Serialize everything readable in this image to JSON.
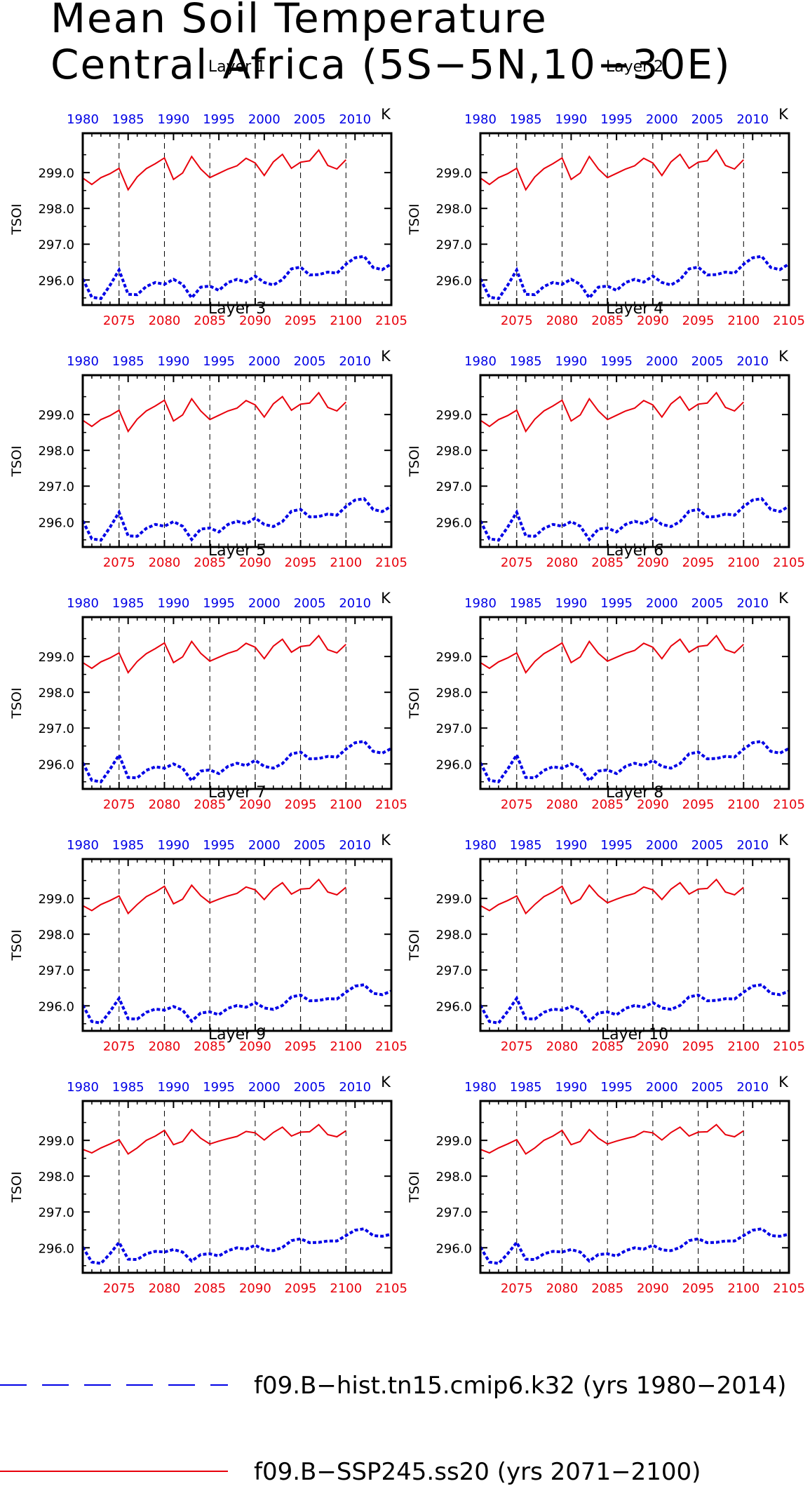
{
  "title": [
    "Mean Soil Temperature",
    "Central Africa (5S−5N,10−30E)"
  ],
  "colors": {
    "ssp": "#e8000b",
    "hist": "#0000e6",
    "axis": "#000000"
  },
  "chart_data": {
    "type": "line",
    "ylabel": "TSOI",
    "units": "K",
    "ylim": [
      295.3,
      300.1
    ],
    "y_ticks": [
      296.0,
      297.0,
      298.0,
      299.0
    ],
    "y_tick_labels": [
      "296.0",
      "297.0",
      "298.0",
      "299.0"
    ],
    "x_bottom": {
      "range": [
        2071,
        2105
      ],
      "ticks": [
        2075,
        2080,
        2085,
        2090,
        2095,
        2100,
        2105
      ]
    },
    "x_top": {
      "range": [
        1980,
        2014
      ],
      "ticks": [
        1980,
        1985,
        1990,
        1995,
        2000,
        2005,
        2010
      ]
    },
    "grid": "dashed vertical lines at bottom-axis ticks 2075–2100",
    "legend_position": "bottom",
    "series": [
      {
        "name": "f09.B−hist.tn15.cmip6.k32 (yrs 1980−2014)",
        "style": "dashed",
        "axis": "top"
      },
      {
        "name": "f09.B−SSP245.ss20 (yrs 2071−2100)",
        "style": "solid",
        "axis": "bottom"
      }
    ],
    "panels": [
      {
        "title": "Layer 1",
        "ssp": [
          298.85,
          298.67,
          298.86,
          298.97,
          299.12,
          298.52,
          298.88,
          299.11,
          299.25,
          299.41,
          298.81,
          298.99,
          299.45,
          299.1,
          298.86,
          298.98,
          299.1,
          299.19,
          299.4,
          299.27,
          298.92,
          299.3,
          299.51,
          299.12,
          299.29,
          299.33,
          299.63,
          299.2,
          299.1,
          299.36
        ],
        "hist": [
          296.03,
          295.52,
          295.48,
          295.85,
          296.28,
          295.6,
          295.59,
          295.82,
          295.93,
          295.88,
          296.02,
          295.88,
          295.5,
          295.8,
          295.83,
          295.71,
          295.93,
          296.02,
          295.94,
          296.11,
          295.93,
          295.86,
          296.01,
          296.31,
          296.36,
          296.14,
          296.15,
          296.22,
          296.19,
          296.44,
          296.62,
          296.66,
          296.35,
          296.29,
          296.45
        ]
      },
      {
        "title": "Layer 2",
        "ssp": [
          298.85,
          298.67,
          298.86,
          298.97,
          299.12,
          298.52,
          298.88,
          299.11,
          299.25,
          299.41,
          298.81,
          298.99,
          299.45,
          299.1,
          298.86,
          298.98,
          299.1,
          299.19,
          299.4,
          299.27,
          298.92,
          299.3,
          299.51,
          299.12,
          299.29,
          299.33,
          299.63,
          299.2,
          299.1,
          299.36
        ],
        "hist": [
          296.03,
          295.52,
          295.48,
          295.85,
          296.28,
          295.6,
          295.59,
          295.82,
          295.93,
          295.88,
          296.02,
          295.88,
          295.5,
          295.8,
          295.83,
          295.71,
          295.93,
          296.02,
          295.94,
          296.11,
          295.93,
          295.86,
          296.01,
          296.31,
          296.36,
          296.14,
          296.15,
          296.22,
          296.19,
          296.44,
          296.62,
          296.66,
          296.35,
          296.29,
          296.45
        ]
      },
      {
        "title": "Layer 3",
        "ssp": [
          298.84,
          298.67,
          298.86,
          298.97,
          299.12,
          298.53,
          298.87,
          299.1,
          299.24,
          299.4,
          298.82,
          298.99,
          299.44,
          299.1,
          298.86,
          298.98,
          299.1,
          299.18,
          299.39,
          299.27,
          298.93,
          299.3,
          299.5,
          299.12,
          299.29,
          299.32,
          299.61,
          299.2,
          299.1,
          299.35
        ],
        "hist": [
          296.03,
          295.53,
          295.49,
          295.85,
          296.27,
          295.61,
          295.6,
          295.82,
          295.93,
          295.88,
          296.01,
          295.88,
          295.51,
          295.8,
          295.83,
          295.72,
          295.93,
          296.02,
          295.95,
          296.11,
          295.93,
          295.87,
          296.01,
          296.3,
          296.35,
          296.14,
          296.15,
          296.22,
          296.19,
          296.43,
          296.61,
          296.65,
          296.35,
          296.29,
          296.44
        ]
      },
      {
        "title": "Layer 4",
        "ssp": [
          298.84,
          298.67,
          298.86,
          298.97,
          299.12,
          298.53,
          298.87,
          299.1,
          299.24,
          299.4,
          298.82,
          298.99,
          299.44,
          299.1,
          298.86,
          298.98,
          299.1,
          299.18,
          299.39,
          299.27,
          298.93,
          299.3,
          299.5,
          299.12,
          299.29,
          299.32,
          299.61,
          299.2,
          299.1,
          299.35
        ],
        "hist": [
          296.03,
          295.53,
          295.49,
          295.85,
          296.27,
          295.61,
          295.6,
          295.82,
          295.93,
          295.88,
          296.01,
          295.88,
          295.51,
          295.8,
          295.83,
          295.72,
          295.93,
          296.02,
          295.95,
          296.11,
          295.93,
          295.87,
          296.01,
          296.3,
          296.35,
          296.14,
          296.15,
          296.22,
          296.19,
          296.43,
          296.61,
          296.65,
          296.35,
          296.29,
          296.44
        ]
      },
      {
        "title": "Layer 5",
        "ssp": [
          298.83,
          298.67,
          298.85,
          298.96,
          299.1,
          298.55,
          298.86,
          299.08,
          299.22,
          299.38,
          298.83,
          298.99,
          299.42,
          299.09,
          298.87,
          298.98,
          299.09,
          299.17,
          299.37,
          299.26,
          298.94,
          299.29,
          299.48,
          299.12,
          299.28,
          299.31,
          299.58,
          299.19,
          299.1,
          299.34
        ],
        "hist": [
          296.03,
          295.54,
          295.5,
          295.85,
          296.25,
          295.62,
          295.61,
          295.82,
          295.92,
          295.88,
          296.0,
          295.88,
          295.53,
          295.8,
          295.83,
          295.73,
          295.93,
          296.02,
          295.95,
          296.1,
          295.93,
          295.88,
          296.01,
          296.28,
          296.33,
          296.14,
          296.15,
          296.21,
          296.19,
          296.41,
          296.59,
          296.63,
          296.35,
          296.3,
          296.43
        ]
      },
      {
        "title": "Layer 6",
        "ssp": [
          298.83,
          298.67,
          298.85,
          298.96,
          299.1,
          298.55,
          298.86,
          299.08,
          299.22,
          299.38,
          298.83,
          298.99,
          299.42,
          299.09,
          298.87,
          298.98,
          299.09,
          299.17,
          299.37,
          299.26,
          298.94,
          299.29,
          299.48,
          299.12,
          299.28,
          299.31,
          299.58,
          299.19,
          299.1,
          299.34
        ],
        "hist": [
          296.03,
          295.54,
          295.5,
          295.85,
          296.25,
          295.62,
          295.61,
          295.82,
          295.92,
          295.88,
          296.0,
          295.88,
          295.53,
          295.8,
          295.83,
          295.73,
          295.93,
          296.02,
          295.95,
          296.1,
          295.93,
          295.88,
          296.01,
          296.28,
          296.33,
          296.14,
          296.15,
          296.21,
          296.19,
          296.41,
          296.59,
          296.63,
          296.35,
          296.3,
          296.43
        ]
      },
      {
        "title": "Layer 7",
        "ssp": [
          298.8,
          298.66,
          298.83,
          298.94,
          299.07,
          298.58,
          298.83,
          299.05,
          299.18,
          299.34,
          298.85,
          298.98,
          299.37,
          299.08,
          298.88,
          298.98,
          299.07,
          299.14,
          299.32,
          299.24,
          298.97,
          299.26,
          299.44,
          299.12,
          299.26,
          299.28,
          299.53,
          299.18,
          299.1,
          299.31
        ],
        "hist": [
          296.02,
          295.56,
          295.52,
          295.84,
          296.21,
          295.64,
          295.63,
          295.82,
          295.91,
          295.88,
          295.98,
          295.88,
          295.57,
          295.8,
          295.83,
          295.75,
          295.93,
          296.01,
          295.96,
          296.09,
          295.94,
          295.9,
          296.01,
          296.25,
          296.3,
          296.14,
          296.15,
          296.2,
          296.19,
          296.38,
          296.55,
          296.59,
          296.35,
          296.31,
          296.41
        ]
      },
      {
        "title": "Layer 8",
        "ssp": [
          298.8,
          298.66,
          298.83,
          298.94,
          299.07,
          298.58,
          298.83,
          299.05,
          299.18,
          299.34,
          298.85,
          298.98,
          299.37,
          299.08,
          298.88,
          298.98,
          299.07,
          299.14,
          299.32,
          299.24,
          298.97,
          299.26,
          299.44,
          299.12,
          299.26,
          299.28,
          299.53,
          299.18,
          299.1,
          299.31
        ],
        "hist": [
          296.02,
          295.56,
          295.52,
          295.84,
          296.21,
          295.64,
          295.63,
          295.82,
          295.91,
          295.88,
          295.98,
          295.88,
          295.57,
          295.8,
          295.83,
          295.75,
          295.93,
          296.01,
          295.96,
          296.09,
          295.94,
          295.9,
          296.01,
          296.25,
          296.3,
          296.14,
          296.15,
          296.2,
          296.19,
          296.38,
          296.55,
          296.59,
          296.35,
          296.31,
          296.41
        ]
      },
      {
        "title": "Layer 9",
        "ssp": [
          298.75,
          298.65,
          298.79,
          298.9,
          299.02,
          298.62,
          298.79,
          299.0,
          299.12,
          299.28,
          298.88,
          298.97,
          299.3,
          299.06,
          298.9,
          298.98,
          299.05,
          299.11,
          299.25,
          299.21,
          299.01,
          299.22,
          299.37,
          299.12,
          299.23,
          299.24,
          299.44,
          299.16,
          299.1,
          299.27
        ],
        "hist": [
          296.02,
          295.6,
          295.56,
          295.83,
          296.15,
          295.68,
          295.67,
          295.83,
          295.9,
          295.88,
          295.95,
          295.88,
          295.63,
          295.81,
          295.83,
          295.77,
          295.92,
          296.0,
          295.96,
          296.07,
          295.94,
          295.92,
          296.01,
          296.2,
          296.25,
          296.14,
          296.15,
          296.19,
          296.19,
          296.34,
          296.49,
          296.53,
          296.34,
          296.32,
          296.38
        ]
      },
      {
        "title": "Layer 10",
        "ssp": [
          298.75,
          298.65,
          298.79,
          298.9,
          299.02,
          298.62,
          298.79,
          299.0,
          299.12,
          299.28,
          298.88,
          298.97,
          299.3,
          299.06,
          298.9,
          298.98,
          299.05,
          299.11,
          299.25,
          299.21,
          299.01,
          299.22,
          299.37,
          299.12,
          299.23,
          299.24,
          299.44,
          299.16,
          299.1,
          299.27
        ],
        "hist": [
          296.02,
          295.6,
          295.56,
          295.83,
          296.15,
          295.68,
          295.67,
          295.83,
          295.9,
          295.88,
          295.95,
          295.88,
          295.63,
          295.81,
          295.83,
          295.77,
          295.92,
          296.0,
          295.96,
          296.07,
          295.94,
          295.92,
          296.01,
          296.2,
          296.25,
          296.14,
          296.15,
          296.19,
          296.19,
          296.34,
          296.49,
          296.53,
          296.34,
          296.32,
          296.38
        ]
      }
    ]
  }
}
